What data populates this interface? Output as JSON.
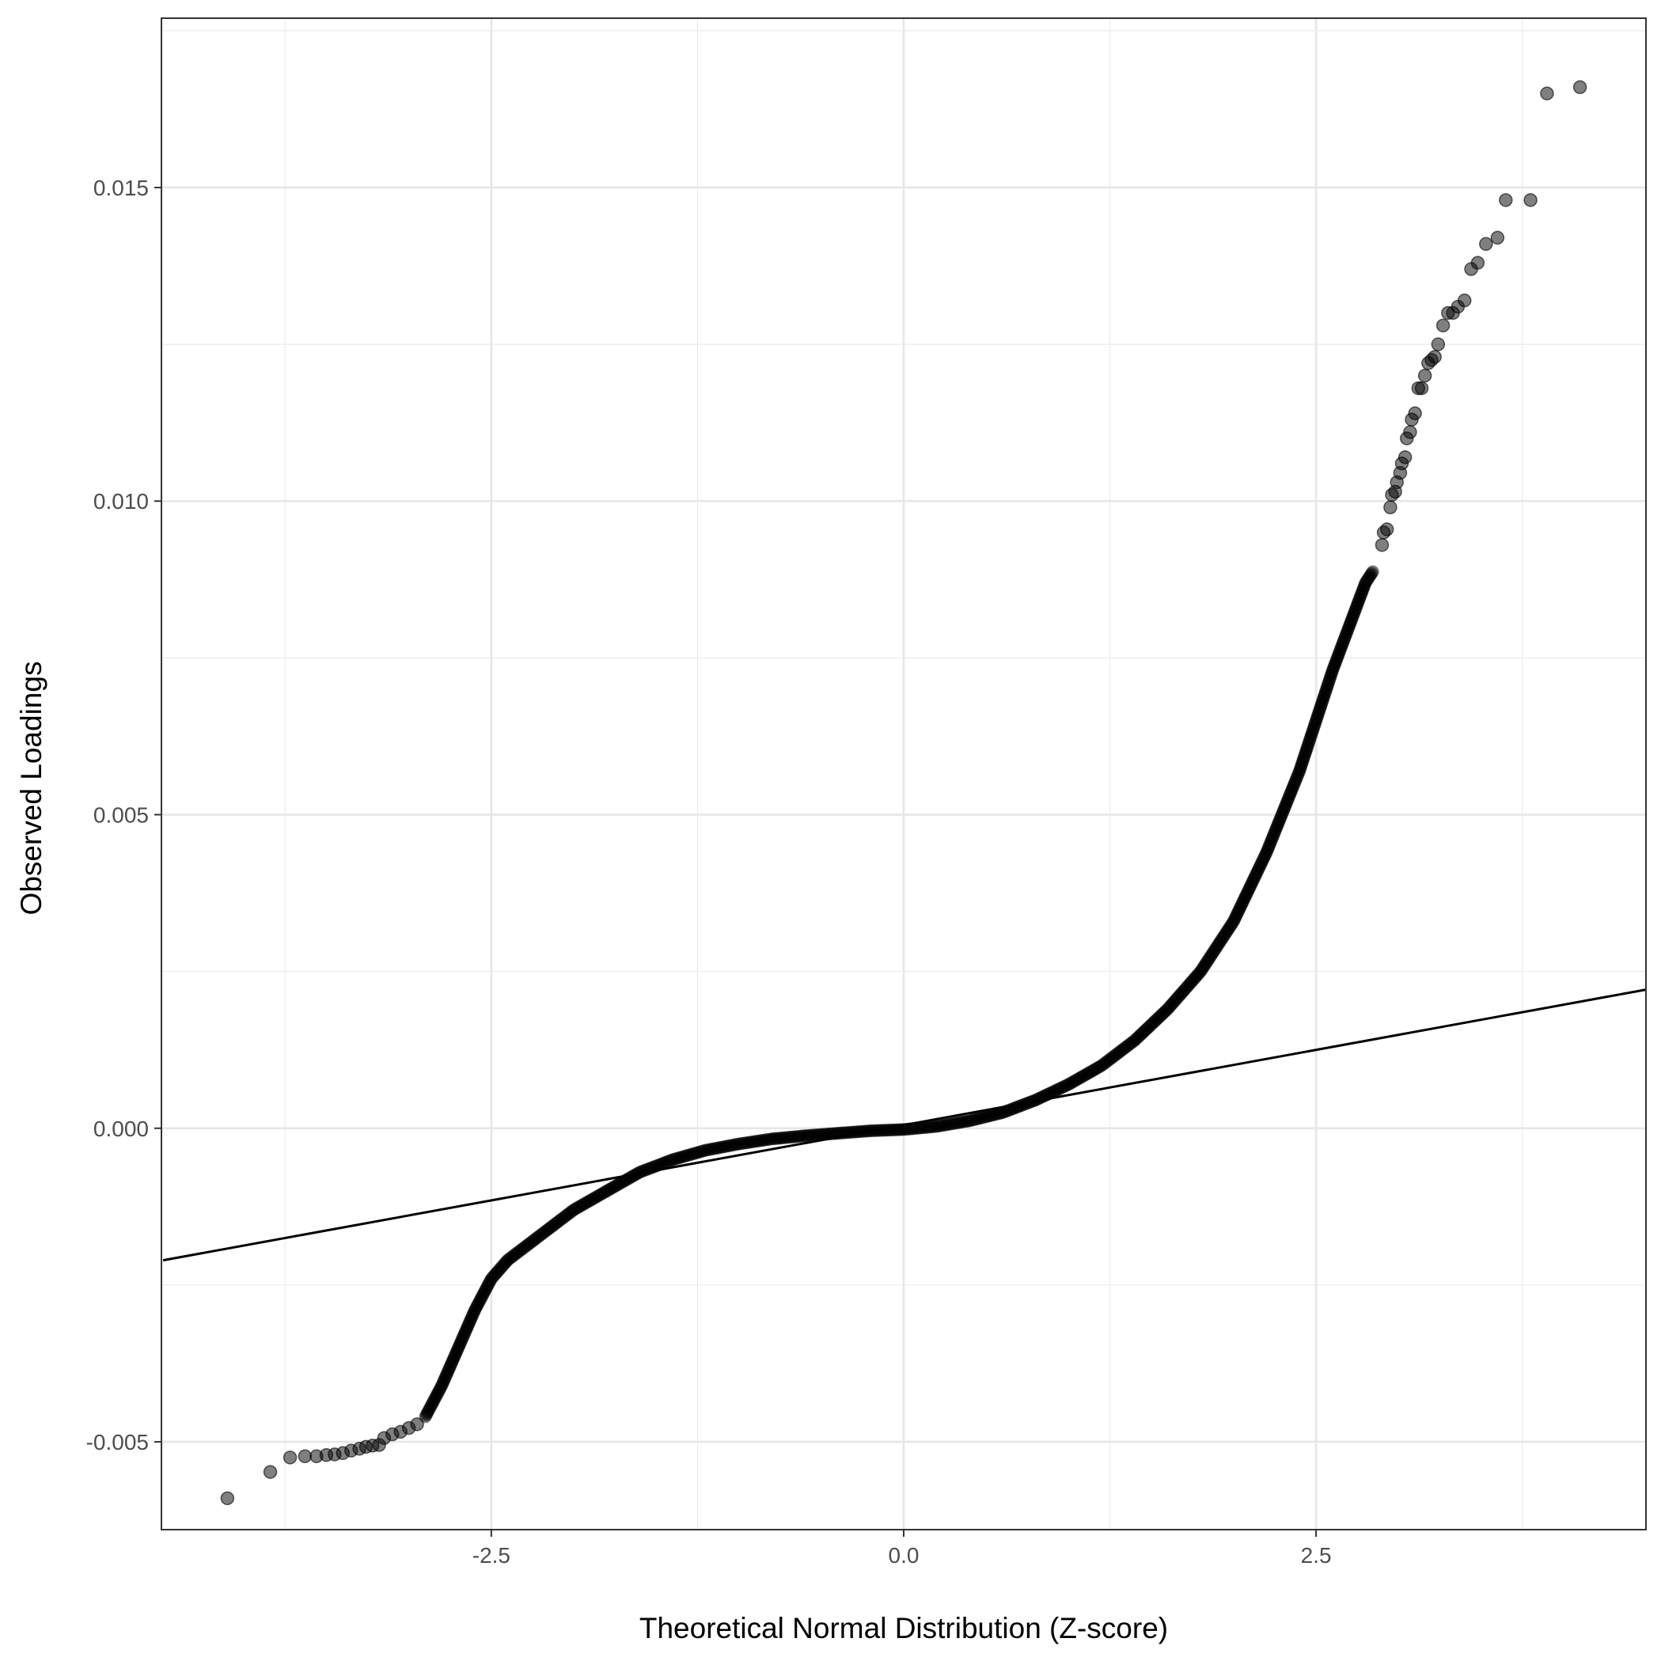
{
  "chart_data": {
    "type": "scatter",
    "title": "",
    "xlabel": "Theoretical Normal Distribution (Z-score)",
    "ylabel": "Observed Loadings",
    "xlim": [
      -4.5,
      4.5
    ],
    "ylim": [
      -0.0064,
      0.0177
    ],
    "x_ticks": [
      -2.5,
      0.0,
      2.5
    ],
    "x_tick_labels": [
      "-2.5",
      "0.0",
      "2.5"
    ],
    "y_ticks": [
      -0.005,
      0.0,
      0.005,
      0.01,
      0.015
    ],
    "y_tick_labels": [
      "-0.005",
      "0.000",
      "0.005",
      "0.010",
      "0.015"
    ],
    "grid": true,
    "legend": "none",
    "point_color": "#000000",
    "point_opacity": 0.5,
    "reference_line": {
      "intercept": 5e-05,
      "slope": 0.00048
    },
    "quantile_curve": [
      [
        -2.9,
        -0.0046
      ],
      [
        -2.8,
        -0.0041
      ],
      [
        -2.7,
        -0.0035
      ],
      [
        -2.6,
        -0.0029
      ],
      [
        -2.5,
        -0.0024
      ],
      [
        -2.4,
        -0.0021
      ],
      [
        -2.2,
        -0.0017
      ],
      [
        -2.0,
        -0.0013
      ],
      [
        -1.8,
        -0.001
      ],
      [
        -1.6,
        -0.0007
      ],
      [
        -1.4,
        -0.0005
      ],
      [
        -1.2,
        -0.00035
      ],
      [
        -1.0,
        -0.00025
      ],
      [
        -0.8,
        -0.00017
      ],
      [
        -0.6,
        -0.00012
      ],
      [
        -0.4,
        -8e-05
      ],
      [
        -0.2,
        -4e-05
      ],
      [
        0.0,
        -2e-05
      ],
      [
        0.2,
        3e-05
      ],
      [
        0.4,
        0.00012
      ],
      [
        0.6,
        0.00025
      ],
      [
        0.8,
        0.00045
      ],
      [
        1.0,
        0.0007
      ],
      [
        1.2,
        0.001
      ],
      [
        1.4,
        0.0014
      ],
      [
        1.6,
        0.0019
      ],
      [
        1.8,
        0.0025
      ],
      [
        2.0,
        0.0033
      ],
      [
        2.2,
        0.0044
      ],
      [
        2.4,
        0.0057
      ],
      [
        2.6,
        0.0073
      ],
      [
        2.7,
        0.008
      ],
      [
        2.8,
        0.0087
      ],
      [
        2.85,
        0.0089
      ]
    ],
    "tail_points": [
      [
        -4.1,
        -0.0059
      ],
      [
        -3.84,
        -0.00548
      ],
      [
        -3.72,
        -0.00525
      ],
      [
        -3.63,
        -0.00523
      ],
      [
        -3.56,
        -0.00523
      ],
      [
        -3.5,
        -0.00521
      ],
      [
        -3.45,
        -0.0052
      ],
      [
        -3.4,
        -0.00518
      ],
      [
        -3.35,
        -0.00514
      ],
      [
        -3.3,
        -0.00511
      ],
      [
        -3.26,
        -0.00508
      ],
      [
        -3.22,
        -0.00506
      ],
      [
        -3.18,
        -0.00505
      ],
      [
        -3.15,
        -0.00494
      ],
      [
        -3.1,
        -0.00488
      ],
      [
        -3.05,
        -0.00484
      ],
      [
        -3.0,
        -0.00478
      ],
      [
        -2.95,
        -0.00472
      ],
      [
        2.9,
        0.0093
      ],
      [
        2.91,
        0.0095
      ],
      [
        2.93,
        0.00955
      ],
      [
        2.95,
        0.0099
      ],
      [
        2.96,
        0.0101
      ],
      [
        2.98,
        0.01015
      ],
      [
        2.99,
        0.0103
      ],
      [
        3.01,
        0.01045
      ],
      [
        3.02,
        0.0106
      ],
      [
        3.04,
        0.0107
      ],
      [
        3.05,
        0.011
      ],
      [
        3.07,
        0.0111
      ],
      [
        3.08,
        0.0113
      ],
      [
        3.1,
        0.0114
      ],
      [
        3.12,
        0.0118
      ],
      [
        3.14,
        0.0118
      ],
      [
        3.16,
        0.012
      ],
      [
        3.18,
        0.0122
      ],
      [
        3.2,
        0.01225
      ],
      [
        3.22,
        0.0123
      ],
      [
        3.24,
        0.0125
      ],
      [
        3.27,
        0.0128
      ],
      [
        3.3,
        0.013
      ],
      [
        3.33,
        0.013
      ],
      [
        3.36,
        0.0131
      ],
      [
        3.4,
        0.0132
      ],
      [
        3.44,
        0.0137
      ],
      [
        3.48,
        0.0138
      ],
      [
        3.53,
        0.0141
      ],
      [
        3.6,
        0.0142
      ],
      [
        3.65,
        0.0148
      ],
      [
        3.8,
        0.0148
      ],
      [
        3.9,
        0.0165
      ],
      [
        4.1,
        0.0166
      ]
    ]
  }
}
